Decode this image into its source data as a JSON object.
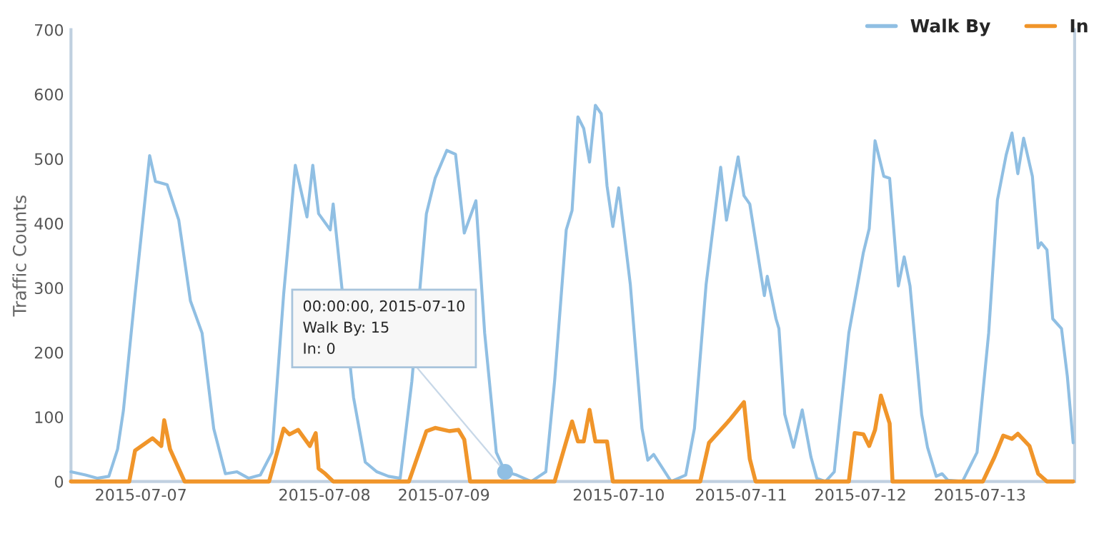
{
  "chart_data": {
    "type": "line",
    "ylabel": "Traffic Counts",
    "xlim": [
      "2015-07-06T21:30",
      "2015-07-14T01:45"
    ],
    "ylim": [
      0,
      700
    ],
    "yticks": [
      0,
      100,
      200,
      300,
      400,
      500,
      600,
      700
    ],
    "xticks": [
      {
        "value": "2015-07-07T09:30",
        "label": "2015-07-07"
      },
      {
        "value": "2015-07-08T17:00",
        "label": "2015-07-08"
      },
      {
        "value": "2015-07-09T13:30",
        "label": "2015-07-09"
      },
      {
        "value": "2015-07-10T19:30",
        "label": "2015-07-10"
      },
      {
        "value": "2015-07-11T16:30",
        "label": "2015-07-11"
      },
      {
        "value": "2015-07-12T13:00",
        "label": "2015-07-12"
      },
      {
        "value": "2015-07-13T09:30",
        "label": "2015-07-13"
      }
    ],
    "grid": false,
    "legend": "top right",
    "series": [
      {
        "name": "Walk By",
        "color": "#90bfe3",
        "x": [
          "2015-07-06T21:30",
          "2015-07-07T00:00",
          "2015-07-07T02:00",
          "2015-07-07T04:00",
          "2015-07-07T05:30",
          "2015-07-07T06:30",
          "2015-07-07T08:30",
          "2015-07-07T11:00",
          "2015-07-07T12:00",
          "2015-07-07T14:00",
          "2015-07-07T16:00",
          "2015-07-07T18:00",
          "2015-07-07T20:00",
          "2015-07-07T22:00",
          "2015-07-08T00:00",
          "2015-07-08T02:00",
          "2015-07-08T04:00",
          "2015-07-08T06:00",
          "2015-07-08T08:00",
          "2015-07-08T10:00",
          "2015-07-08T12:00",
          "2015-07-08T14:00",
          "2015-07-08T15:00",
          "2015-07-08T16:00",
          "2015-07-08T18:00",
          "2015-07-08T18:30",
          "2015-07-08T20:00",
          "2015-07-08T22:00",
          "2015-07-09T00:00",
          "2015-07-09T02:00",
          "2015-07-09T04:00",
          "2015-07-09T06:00",
          "2015-07-09T08:00",
          "2015-07-09T10:30",
          "2015-07-09T12:00",
          "2015-07-09T14:00",
          "2015-07-09T15:30",
          "2015-07-09T17:00",
          "2015-07-09T19:00",
          "2015-07-09T20:30",
          "2015-07-09T22:30",
          "2015-07-10T00:00",
          "2015-07-10T02:00",
          "2015-07-10T04:30",
          "2015-07-10T07:00",
          "2015-07-10T08:30",
          "2015-07-10T10:30",
          "2015-07-10T11:30",
          "2015-07-10T12:30",
          "2015-07-10T13:30",
          "2015-07-10T14:30",
          "2015-07-10T15:30",
          "2015-07-10T16:30",
          "2015-07-10T17:30",
          "2015-07-10T18:30",
          "2015-07-10T19:30",
          "2015-07-10T21:30",
          "2015-07-10T23:30",
          "2015-07-11T00:30",
          "2015-07-11T01:30",
          "2015-07-11T04:30",
          "2015-07-11T07:00",
          "2015-07-11T08:30",
          "2015-07-11T10:30",
          "2015-07-11T12:00",
          "2015-07-11T13:00",
          "2015-07-11T14:00",
          "2015-07-11T16:00",
          "2015-07-11T17:00",
          "2015-07-11T18:00",
          "2015-07-11T20:30",
          "2015-07-11T21:00",
          "2015-07-11T22:30",
          "2015-07-11T23:00",
          "2015-07-12T00:00",
          "2015-07-12T01:30",
          "2015-07-12T03:00",
          "2015-07-12T04:30",
          "2015-07-12T05:30",
          "2015-07-12T07:00",
          "2015-07-12T08:30",
          "2015-07-12T11:00",
          "2015-07-12T13:30",
          "2015-07-12T14:30",
          "2015-07-12T15:30",
          "2015-07-12T17:00",
          "2015-07-12T18:00",
          "2015-07-12T19:30",
          "2015-07-12T20:30",
          "2015-07-12T21:30",
          "2015-07-12T23:30",
          "2015-07-13T00:30",
          "2015-07-13T02:00",
          "2015-07-13T03:00",
          "2015-07-13T04:00",
          "2015-07-13T06:30",
          "2015-07-13T09:00",
          "2015-07-13T11:00",
          "2015-07-13T12:30",
          "2015-07-13T14:00",
          "2015-07-13T15:00",
          "2015-07-13T16:00",
          "2015-07-13T17:00",
          "2015-07-13T18:30",
          "2015-07-13T19:30",
          "2015-07-13T20:00",
          "2015-07-13T21:00",
          "2015-07-13T22:00",
          "2015-07-13T23:30",
          "2015-07-14T00:30",
          "2015-07-14T01:30"
        ],
        "values": [
          15,
          10,
          5,
          8,
          50,
          110,
          290,
          505,
          465,
          460,
          405,
          280,
          230,
          82,
          12,
          15,
          5,
          10,
          45,
          290,
          490,
          410,
          490,
          415,
          390,
          430,
          300,
          130,
          30,
          15,
          8,
          5,
          155,
          415,
          470,
          513,
          507,
          385,
          435,
          230,
          45,
          15,
          10,
          0,
          15,
          155,
          390,
          420,
          565,
          547,
          495,
          583,
          570,
          458,
          395,
          455,
          305,
          82,
          33,
          42,
          0,
          10,
          82,
          305,
          415,
          487,
          405,
          503,
          443,
          430,
          288,
          318,
          252,
          237,
          104,
          53,
          111,
          38,
          5,
          0,
          15,
          230,
          355,
          392,
          528,
          473,
          470,
          303,
          348,
          303,
          104,
          53,
          8,
          12,
          2,
          0,
          45,
          230,
          436,
          506,
          540,
          477,
          532,
          473,
          362,
          370,
          359,
          252,
          237,
          163,
          60
        ]
      },
      {
        "name": "In",
        "color": "#f0952a",
        "x": [
          "2015-07-06T21:30",
          "2015-07-07T07:30",
          "2015-07-07T08:30",
          "2015-07-07T11:30",
          "2015-07-07T13:00",
          "2015-07-07T13:30",
          "2015-07-07T14:30",
          "2015-07-07T17:00",
          "2015-07-08T07:30",
          "2015-07-08T10:00",
          "2015-07-08T11:00",
          "2015-07-08T12:30",
          "2015-07-08T14:30",
          "2015-07-08T15:30",
          "2015-07-08T16:00",
          "2015-07-08T17:00",
          "2015-07-08T18:30",
          "2015-07-09T07:30",
          "2015-07-09T10:30",
          "2015-07-09T12:00",
          "2015-07-09T14:30",
          "2015-07-09T16:00",
          "2015-07-09T17:00",
          "2015-07-09T18:00",
          "2015-07-10T08:30",
          "2015-07-10T11:30",
          "2015-07-10T12:30",
          "2015-07-10T13:30",
          "2015-07-10T14:30",
          "2015-07-10T15:30",
          "2015-07-10T17:30",
          "2015-07-10T18:30",
          "2015-07-11T09:30",
          "2015-07-11T11:00",
          "2015-07-11T12:30",
          "2015-07-11T14:30",
          "2015-07-11T17:00",
          "2015-07-11T18:00",
          "2015-07-11T19:00",
          "2015-07-12T11:00",
          "2015-07-12T12:00",
          "2015-07-12T13:30",
          "2015-07-12T14:30",
          "2015-07-12T15:30",
          "2015-07-12T16:30",
          "2015-07-12T18:00",
          "2015-07-12T18:30",
          "2015-07-13T10:00",
          "2015-07-13T12:00",
          "2015-07-13T13:30",
          "2015-07-13T15:00",
          "2015-07-13T16:00",
          "2015-07-13T18:00",
          "2015-07-13T19:30",
          "2015-07-13T21:00",
          "2015-07-14T01:30"
        ],
        "values": [
          0,
          0,
          48,
          67,
          55,
          95,
          50,
          0,
          0,
          82,
          73,
          80,
          55,
          75,
          20,
          13,
          0,
          0,
          78,
          83,
          78,
          80,
          65,
          0,
          0,
          93,
          62,
          62,
          111,
          62,
          62,
          0,
          0,
          60,
          75,
          95,
          123,
          35,
          0,
          0,
          75,
          73,
          55,
          80,
          133,
          90,
          0,
          0,
          38,
          71,
          66,
          74,
          55,
          12,
          0,
          0
        ]
      }
    ],
    "annotations": [
      {
        "text": "00:00:00, 2015-07-10\nWalk By: 15\nIn: 0",
        "x": "2015-07-10T00:00",
        "y": 15
      }
    ]
  }
}
